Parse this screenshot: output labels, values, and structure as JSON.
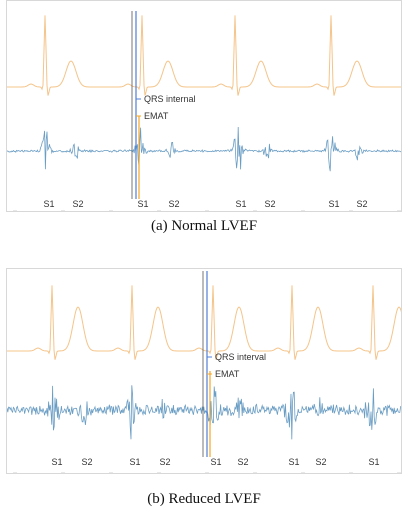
{
  "chart_data": [
    {
      "type": "line",
      "caption": "(a)  Normal LVEF",
      "series": [
        {
          "color": "#f5c48a",
          "kind": "ECG"
        },
        {
          "color": "#6a9dc4",
          "kind": "PCG"
        }
      ],
      "ecg_beats_x": [
        38,
        135,
        228,
        324
      ],
      "sound_labels": [
        {
          "text": "S1",
          "x": 42
        },
        {
          "text": "S2",
          "x": 71
        },
        {
          "text": "S1",
          "x": 136
        },
        {
          "text": "S2",
          "x": 167
        },
        {
          "text": "S1",
          "x": 234
        },
        {
          "text": "S2",
          "x": 263
        },
        {
          "text": "S1",
          "x": 327
        },
        {
          "text": "S2",
          "x": 355
        }
      ],
      "markers": [
        {
          "text": "QRS internal",
          "color": "#4f7fd6"
        },
        {
          "text": "EMAT",
          "color": "#f5a623"
        }
      ]
    },
    {
      "type": "line",
      "caption": "(b)  Reduced LVEF",
      "series": [
        {
          "color": "#f5c48a",
          "kind": "ECG"
        },
        {
          "color": "#6a9dc4",
          "kind": "PCG"
        }
      ],
      "ecg_beats_x": [
        45,
        125,
        206,
        285,
        366
      ],
      "sound_labels": [
        {
          "text": "S1",
          "x": 50
        },
        {
          "text": "S2",
          "x": 80
        },
        {
          "text": "S1",
          "x": 128
        },
        {
          "text": "S2",
          "x": 158
        },
        {
          "text": "S1",
          "x": 209
        },
        {
          "text": "S2",
          "x": 236
        },
        {
          "text": "S1",
          "x": 287
        },
        {
          "text": "S2",
          "x": 314
        },
        {
          "text": "S1",
          "x": 367
        }
      ],
      "markers": [
        {
          "text": "QRS interval",
          "color": "#4f7fd6"
        },
        {
          "text": "EMAT",
          "color": "#f5a623"
        }
      ]
    }
  ]
}
